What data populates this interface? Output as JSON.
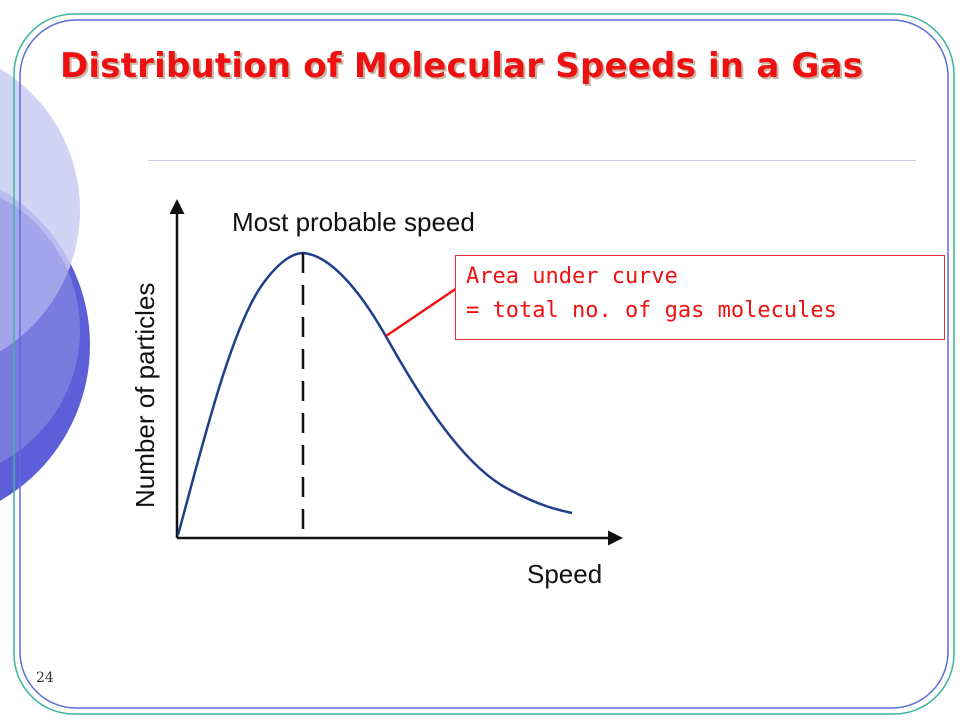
{
  "slide": {
    "title": "Distribution of Molecular Speeds in a Gas",
    "page_number": "24"
  },
  "diagram": {
    "x_axis_label": "Speed",
    "y_axis_label": "Number of particles",
    "peak_label": "Most probable speed",
    "callout": {
      "line1": "Area under curve",
      "line2": "= total no. of gas molecules"
    }
  },
  "colors": {
    "title": "#ee1111",
    "curve": "#1f3f8a",
    "callout": "#ee1111",
    "frame": "#3fb3a0",
    "decor_circle_dark": "#5e5fd8",
    "decor_circle_light": "#c9ccf3"
  }
}
